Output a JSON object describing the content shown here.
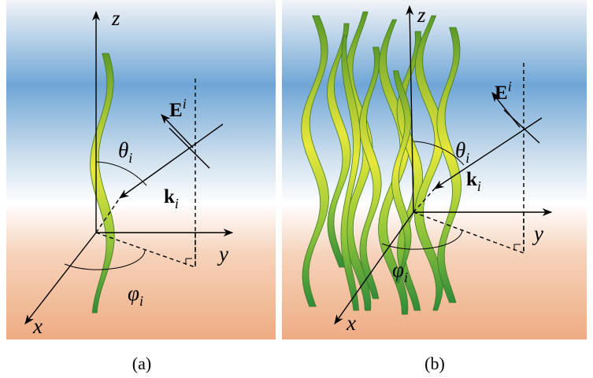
{
  "panels": [
    {
      "caption": "(a)",
      "axes": {
        "x": "x",
        "y": "y",
        "z": "z"
      },
      "field": {
        "base": "E",
        "sup": "i"
      },
      "wavevector": {
        "base": "k",
        "sub": "i"
      },
      "polar_angle": {
        "base": "θ",
        "sub": "i"
      },
      "azimuth_angle": {
        "base": "φ",
        "sub": "i"
      }
    },
    {
      "caption": "(b)",
      "axes": {
        "x": "x",
        "y": "y",
        "z": "z"
      },
      "field": {
        "base": "E",
        "sup": "i"
      },
      "wavevector": {
        "base": "k",
        "sub": "i"
      },
      "polar_angle": {
        "base": "θ",
        "sub": "i"
      },
      "azimuth_angle": {
        "base": "φ",
        "sub": "i"
      }
    }
  ]
}
